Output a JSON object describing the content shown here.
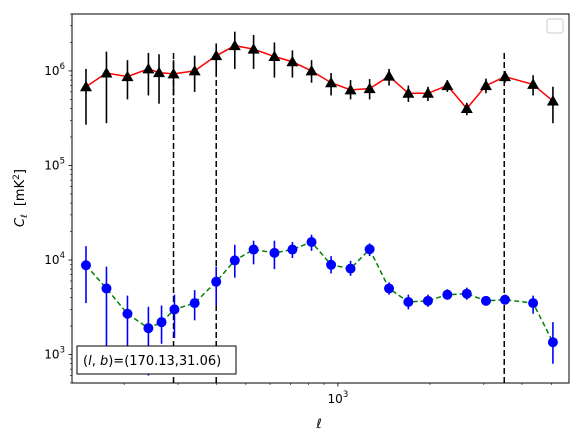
{
  "chart_data": {
    "type": "scatter",
    "xscale": "log",
    "yscale": "log",
    "xlim": [
      135,
      5700
    ],
    "ylim": [
      500,
      4000000
    ],
    "xlabel": "ℓ",
    "ylabel": "C",
    "ylabel_sub": "ℓ",
    "ylabel_unit": "[mK",
    "ylabel_unit_sup": "2",
    "ylabel_unit_end": "]",
    "xticks": [
      {
        "value": 1000,
        "base": "10",
        "exp": "3"
      }
    ],
    "yticks": [
      {
        "value": 1000,
        "base": "10",
        "exp": "3"
      },
      {
        "value": 10000,
        "base": "10",
        "exp": "4"
      },
      {
        "value": 100000,
        "base": "10",
        "exp": "5"
      },
      {
        "value": 1000000,
        "base": "10",
        "exp": "6"
      }
    ],
    "legend": "top-right",
    "vlines": [
      {
        "x": 290,
        "ymin": 500,
        "ymax": 1600000,
        "color": "#000000",
        "style": "dashed"
      },
      {
        "x": 400,
        "ymin": 500,
        "ymax": 1600000,
        "color": "#000000",
        "style": "dashed"
      },
      {
        "x": 3500,
        "ymin": 500,
        "ymax": 1600000,
        "color": "#000000",
        "style": "dashed"
      }
    ],
    "annotation": {
      "text_pre": "(",
      "text_l": "l",
      "text_mid": ", ",
      "text_b": "b",
      "text_post": ")=(170.13,31.06)",
      "position": "bottom-left"
    },
    "series": [
      {
        "marker": "triangle",
        "color": "#000000",
        "line_color": "#ff0000",
        "line_style": "solid",
        "points": [
          {
            "x": 150,
            "y": 680000,
            "lo": 270000,
            "hi": 1050000
          },
          {
            "x": 175,
            "y": 950000,
            "lo": 280000,
            "hi": 1600000
          },
          {
            "x": 205,
            "y": 870000,
            "lo": 500000,
            "hi": 1300000
          },
          {
            "x": 240,
            "y": 1050000,
            "lo": 550000,
            "hi": 1550000
          },
          {
            "x": 260,
            "y": 960000,
            "lo": 450000,
            "hi": 1500000
          },
          {
            "x": 290,
            "y": 930000,
            "lo": 550000,
            "hi": 1300000
          },
          {
            "x": 340,
            "y": 1000000,
            "lo": 600000,
            "hi": 1450000
          },
          {
            "x": 400,
            "y": 1450000,
            "lo": 900000,
            "hi": 1950000
          },
          {
            "x": 460,
            "y": 1850000,
            "lo": 1050000,
            "hi": 2600000
          },
          {
            "x": 530,
            "y": 1700000,
            "lo": 1050000,
            "hi": 2400000
          },
          {
            "x": 620,
            "y": 1420000,
            "lo": 850000,
            "hi": 2000000
          },
          {
            "x": 710,
            "y": 1250000,
            "lo": 850000,
            "hi": 1650000
          },
          {
            "x": 820,
            "y": 1000000,
            "lo": 750000,
            "hi": 1300000
          },
          {
            "x": 950,
            "y": 750000,
            "lo": 550000,
            "hi": 950000
          },
          {
            "x": 1100,
            "y": 630000,
            "lo": 500000,
            "hi": 800000
          },
          {
            "x": 1270,
            "y": 650000,
            "lo": 500000,
            "hi": 820000
          },
          {
            "x": 1470,
            "y": 880000,
            "lo": 700000,
            "hi": 1050000
          },
          {
            "x": 1700,
            "y": 580000,
            "lo": 470000,
            "hi": 700000
          },
          {
            "x": 1970,
            "y": 580000,
            "lo": 480000,
            "hi": 680000
          },
          {
            "x": 2280,
            "y": 700000,
            "lo": 600000,
            "hi": 800000
          },
          {
            "x": 2640,
            "y": 400000,
            "lo": 340000,
            "hi": 460000
          },
          {
            "x": 3050,
            "y": 700000,
            "lo": 580000,
            "hi": 830000
          },
          {
            "x": 3520,
            "y": 870000,
            "lo": 750000,
            "hi": 1000000
          },
          {
            "x": 4350,
            "y": 720000,
            "lo": 550000,
            "hi": 900000
          },
          {
            "x": 5050,
            "y": 480000,
            "lo": 280000,
            "hi": 680000
          }
        ]
      },
      {
        "marker": "circle",
        "color": "#0000ff",
        "line_color": "#008000",
        "line_style": "dashed",
        "points": [
          {
            "x": 150,
            "y": 8800,
            "lo": 3500,
            "hi": 14000
          },
          {
            "x": 175,
            "y": 5000,
            "lo": 1200,
            "hi": 8500
          },
          {
            "x": 205,
            "y": 2700,
            "lo": 1000,
            "hi": 4200
          },
          {
            "x": 240,
            "y": 1900,
            "lo": 600,
            "hi": 3200
          },
          {
            "x": 265,
            "y": 2200,
            "lo": 1300,
            "hi": 3300
          },
          {
            "x": 292,
            "y": 3000,
            "lo": 1500,
            "hi": 4300
          },
          {
            "x": 340,
            "y": 3500,
            "lo": 2300,
            "hi": 4800
          },
          {
            "x": 400,
            "y": 5900,
            "lo": 3300,
            "hi": 8500
          },
          {
            "x": 460,
            "y": 9900,
            "lo": 6500,
            "hi": 14500
          },
          {
            "x": 530,
            "y": 12900,
            "lo": 9000,
            "hi": 16000
          },
          {
            "x": 620,
            "y": 11900,
            "lo": 8000,
            "hi": 16000
          },
          {
            "x": 710,
            "y": 12900,
            "lo": 10500,
            "hi": 15500
          },
          {
            "x": 820,
            "y": 15500,
            "lo": 12500,
            "hi": 18500
          },
          {
            "x": 950,
            "y": 8900,
            "lo": 7200,
            "hi": 11000
          },
          {
            "x": 1100,
            "y": 8100,
            "lo": 6800,
            "hi": 9800
          },
          {
            "x": 1270,
            "y": 13000,
            "lo": 11000,
            "hi": 15000
          },
          {
            "x": 1470,
            "y": 5000,
            "lo": 4300,
            "hi": 5800
          },
          {
            "x": 1700,
            "y": 3600,
            "lo": 3000,
            "hi": 4300
          },
          {
            "x": 1970,
            "y": 3700,
            "lo": 3200,
            "hi": 4300
          },
          {
            "x": 2280,
            "y": 4300,
            "lo": 3800,
            "hi": 4900
          },
          {
            "x": 2640,
            "y": 4400,
            "lo": 3800,
            "hi": 5100
          },
          {
            "x": 3050,
            "y": 3700,
            "lo": 3300,
            "hi": 4100
          },
          {
            "x": 3520,
            "y": 3800,
            "lo": 3400,
            "hi": 4300
          },
          {
            "x": 4350,
            "y": 3500,
            "lo": 2700,
            "hi": 4200
          },
          {
            "x": 5050,
            "y": 1350,
            "lo": 800,
            "hi": 2200
          }
        ]
      }
    ]
  }
}
